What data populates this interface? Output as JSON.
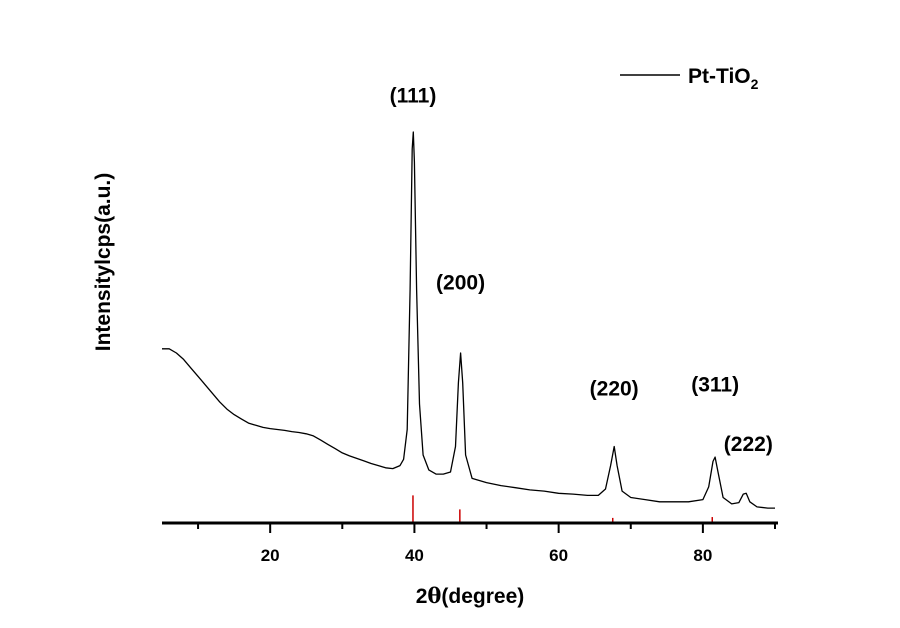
{
  "chart_data": {
    "type": "line",
    "xlabel_prefix": "2",
    "xlabel_symbol": "θ",
    "xlabel_suffix": "(degree)",
    "ylabel": "Intensitylcps(a.u.)",
    "xlim": [
      5,
      90
    ],
    "ylim": [
      0,
      100
    ],
    "x_ticks": [
      20,
      40,
      60,
      80
    ],
    "legend": {
      "position": "top-right",
      "label_main": "Pt-TiO",
      "label_sub": "2"
    },
    "series": [
      {
        "name": "Pt-TiO2",
        "color": "#000000",
        "points": [
          [
            5,
            41
          ],
          [
            6,
            41
          ],
          [
            7,
            40
          ],
          [
            8,
            38.5
          ],
          [
            9,
            36.5
          ],
          [
            10,
            34.5
          ],
          [
            11,
            32.5
          ],
          [
            12,
            30.5
          ],
          [
            13,
            28.5
          ],
          [
            14,
            26.8
          ],
          [
            15,
            25.5
          ],
          [
            16,
            24.5
          ],
          [
            17,
            23.5
          ],
          [
            18,
            23
          ],
          [
            19,
            22.5
          ],
          [
            20,
            22.2
          ],
          [
            21,
            22
          ],
          [
            22,
            21.8
          ],
          [
            23,
            21.5
          ],
          [
            24,
            21.3
          ],
          [
            25,
            21
          ],
          [
            26,
            20.5
          ],
          [
            27,
            19.5
          ],
          [
            28,
            18.5
          ],
          [
            29,
            17.5
          ],
          [
            30,
            16.5
          ],
          [
            31,
            15.8
          ],
          [
            32,
            15.2
          ],
          [
            33,
            14.6
          ],
          [
            34,
            14
          ],
          [
            35,
            13.5
          ],
          [
            36,
            13
          ],
          [
            37,
            12.8
          ],
          [
            38,
            13.5
          ],
          [
            38.5,
            15
          ],
          [
            39,
            22
          ],
          [
            39.4,
            55
          ],
          [
            39.7,
            88
          ],
          [
            39.85,
            92
          ],
          [
            40,
            85
          ],
          [
            40.3,
            55
          ],
          [
            40.7,
            28
          ],
          [
            41.2,
            16
          ],
          [
            42,
            12.5
          ],
          [
            43,
            11.5
          ],
          [
            44,
            11.5
          ],
          [
            45,
            12
          ],
          [
            45.7,
            18
          ],
          [
            46.1,
            33
          ],
          [
            46.4,
            40
          ],
          [
            46.7,
            33
          ],
          [
            47.1,
            16
          ],
          [
            48,
            10.5
          ],
          [
            50,
            9.5
          ],
          [
            52,
            8.8
          ],
          [
            54,
            8.3
          ],
          [
            56,
            7.8
          ],
          [
            58,
            7.5
          ],
          [
            60,
            7
          ],
          [
            62,
            6.8
          ],
          [
            64,
            6.5
          ],
          [
            65.5,
            6.5
          ],
          [
            66.5,
            8
          ],
          [
            67.2,
            13.5
          ],
          [
            67.7,
            18
          ],
          [
            68.1,
            13.5
          ],
          [
            68.8,
            7.5
          ],
          [
            70,
            6
          ],
          [
            72,
            5.5
          ],
          [
            74,
            5
          ],
          [
            76,
            5
          ],
          [
            78,
            5
          ],
          [
            80,
            5.5
          ],
          [
            80.8,
            8.5
          ],
          [
            81.4,
            14.5
          ],
          [
            81.7,
            15.5
          ],
          [
            82.1,
            12
          ],
          [
            82.8,
            6
          ],
          [
            84,
            4.5
          ],
          [
            85,
            4.8
          ],
          [
            85.6,
            6.8
          ],
          [
            86,
            7
          ],
          [
            86.5,
            5
          ],
          [
            87.5,
            3.8
          ],
          [
            89,
            3.5
          ],
          [
            90,
            3.5
          ]
        ]
      }
    ],
    "reference_lines": {
      "color": "#cc0000",
      "items": [
        {
          "x": 39.8,
          "height": 6.5
        },
        {
          "x": 46.3,
          "height": 3.2
        },
        {
          "x": 67.5,
          "height": 1.2
        },
        {
          "x": 81.3,
          "height": 1.4
        }
      ]
    },
    "annotations": [
      {
        "text": "(111)",
        "x": 39.8,
        "y": 99
      },
      {
        "text": "(200)",
        "x": 46.4,
        "y": 55
      },
      {
        "text": "(220)",
        "x": 67.7,
        "y": 30
      },
      {
        "text": "(311)",
        "x": 81.7,
        "y": 31
      },
      {
        "text": "(222)",
        "x": 86.3,
        "y": 17
      }
    ]
  }
}
